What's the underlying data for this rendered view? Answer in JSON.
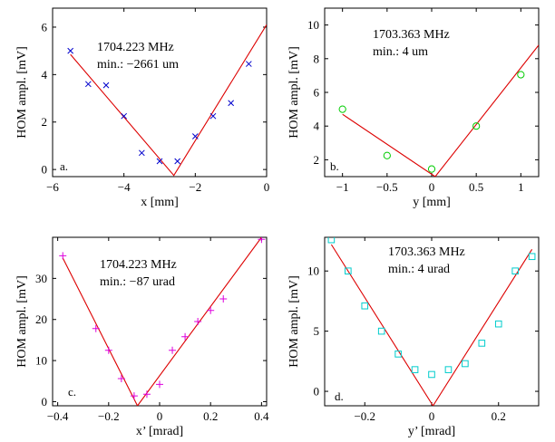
{
  "chart_data": [
    {
      "type": "scatter",
      "panel_letter": "a.",
      "freq_text": "1704.223 MHz",
      "min_text": "min.: −2661 um",
      "xlabel": "x [mm]",
      "ylabel": "HOM ampl. [mV]",
      "xlim": [
        -6,
        0
      ],
      "ylim": [
        -0.3,
        6.8
      ],
      "xticks": [
        -6,
        -4,
        -2,
        0
      ],
      "xtick_labels": [
        "−6",
        "−4",
        "−2",
        "0"
      ],
      "yticks": [
        0,
        2,
        4,
        6
      ],
      "ytick_labels": [
        "0",
        "2",
        "4",
        "6"
      ],
      "marker": "x",
      "marker_color": "#0000cc",
      "fit_color": "#dd0000",
      "points": {
        "x": [
          -5.5,
          -5.0,
          -4.5,
          -4.0,
          -3.5,
          -3.0,
          -2.5,
          -2.0,
          -1.5,
          -1.0,
          -0.5
        ],
        "y": [
          5.0,
          3.6,
          3.55,
          2.25,
          0.7,
          0.35,
          0.35,
          1.4,
          2.25,
          2.8,
          4.45
        ]
      },
      "fit": {
        "x": [
          -5.5,
          -2.6,
          0
        ],
        "y": [
          4.85,
          -0.25,
          6.1
        ]
      }
    },
    {
      "type": "scatter",
      "panel_letter": "b.",
      "freq_text": "1703.363 MHz",
      "min_text": "min.: 4 um",
      "xlabel": "y [mm]",
      "ylabel": "HOM ampl. [mV]",
      "xlim": [
        -1.2,
        1.2
      ],
      "ylim": [
        1.0,
        11.0
      ],
      "xticks": [
        -1,
        -0.5,
        0,
        0.5,
        1
      ],
      "xtick_labels": [
        "−1",
        "−0.5",
        "0",
        "0.5",
        "1"
      ],
      "yticks": [
        2,
        4,
        6,
        8,
        10
      ],
      "ytick_labels": [
        "2",
        "4",
        "6",
        "8",
        "10"
      ],
      "marker": "o",
      "marker_color": "#00cc00",
      "fit_color": "#dd0000",
      "points": {
        "x": [
          -1.0,
          -0.5,
          0.0,
          0.5,
          1.0
        ],
        "y": [
          5.0,
          2.25,
          1.45,
          4.0,
          7.05
        ]
      },
      "fit": {
        "x": [
          -1.0,
          0.04,
          1.2
        ],
        "y": [
          4.7,
          1.0,
          8.8
        ]
      }
    },
    {
      "type": "scatter",
      "panel_letter": "c.",
      "freq_text": "1704.223 MHz",
      "min_text": "min.: −87 urad",
      "xlabel": "x’ [mrad]",
      "ylabel": "HOM ampl. [mV]",
      "xlim": [
        -0.42,
        0.42
      ],
      "ylim": [
        -1,
        40
      ],
      "xticks": [
        -0.4,
        -0.2,
        0,
        0.2,
        0.4
      ],
      "xtick_labels": [
        "−0.4",
        "−0.2",
        "0",
        "0.2",
        "0.4"
      ],
      "yticks": [
        0,
        10,
        20,
        30
      ],
      "ytick_labels": [
        "0",
        "10",
        "20",
        "30"
      ],
      "marker": "+",
      "marker_color": "#dd00dd",
      "fit_color": "#dd0000",
      "points": {
        "x": [
          -0.38,
          -0.25,
          -0.2,
          -0.15,
          -0.1,
          -0.05,
          0.0,
          0.05,
          0.1,
          0.15,
          0.2,
          0.25,
          0.4
        ],
        "y": [
          35.5,
          17.8,
          12.5,
          5.6,
          1.4,
          1.8,
          4.2,
          12.5,
          15.8,
          19.5,
          22.2,
          25.0,
          39.5
        ]
      },
      "fit": {
        "x": [
          -0.38,
          -0.087,
          0.4
        ],
        "y": [
          35.0,
          -1.0,
          40.0
        ]
      }
    },
    {
      "type": "scatter",
      "panel_letter": "d.",
      "freq_text": "1703.363 MHz",
      "min_text": "min.: 4 urad",
      "xlabel": "y’ [mrad]",
      "ylabel": "HOM ampl. [mV]",
      "xlim": [
        -0.32,
        0.32
      ],
      "ylim": [
        -1.2,
        12.8
      ],
      "xticks": [
        -0.2,
        0,
        0.2
      ],
      "xtick_labels": [
        "−0.2",
        "0",
        "0.2"
      ],
      "yticks": [
        0,
        5,
        10
      ],
      "ytick_labels": [
        "0",
        "5",
        "10"
      ],
      "marker": "square",
      "marker_color": "#00cccc",
      "fit_color": "#dd0000",
      "points": {
        "x": [
          -0.3,
          -0.25,
          -0.2,
          -0.15,
          -0.1,
          -0.05,
          0.0,
          0.05,
          0.1,
          0.15,
          0.2,
          0.25,
          0.3
        ],
        "y": [
          12.6,
          10.0,
          7.1,
          5.0,
          3.1,
          1.8,
          1.4,
          1.8,
          2.3,
          4.0,
          5.6,
          10.0,
          11.2
        ]
      },
      "fit": {
        "x": [
          -0.3,
          0.004,
          0.3
        ],
        "y": [
          12.2,
          -1.2,
          11.8
        ]
      }
    }
  ]
}
